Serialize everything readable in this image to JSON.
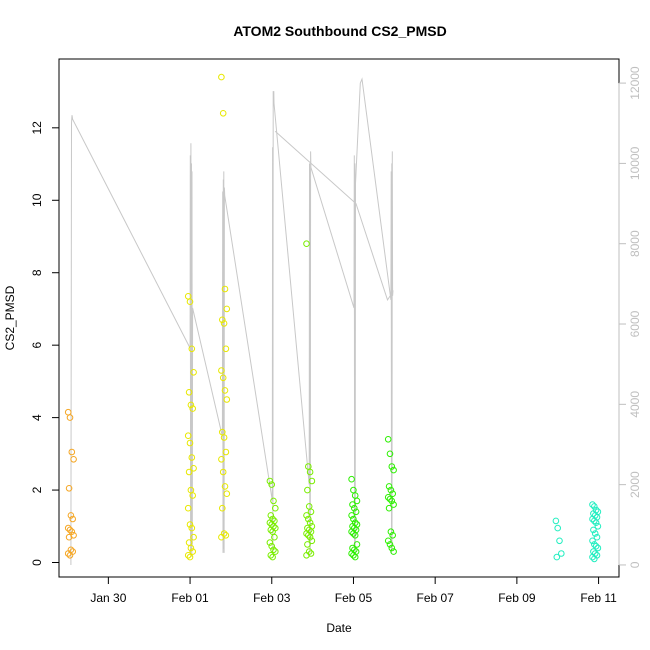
{
  "chart_data": {
    "type": "scatter",
    "title": "ATOM2 Southbound CS2_PMSD",
    "xlabel": "Date",
    "ylabel": "CS2_PMSD",
    "x_ticks": [
      "Jan 30",
      "Feb 01",
      "Feb 03",
      "Feb 05",
      "Feb 07",
      "Feb 09",
      "Feb 11"
    ],
    "y_ticks": [
      "0",
      "2",
      "4",
      "6",
      "8",
      "10",
      "12"
    ],
    "y2_ticks": [
      "0",
      "2000",
      "4000",
      "6000",
      "8000",
      "10000",
      "12000"
    ],
    "xlim": [
      "Jan 28 19:00",
      "Feb 11 12:00"
    ],
    "ylim": [
      -0.4,
      13.9
    ],
    "y2lim": [
      -300,
      12600
    ],
    "grid": false,
    "series": [
      {
        "marker": "circle-open",
        "color": "#f5a623",
        "points": [
          {
            "x": "Jan 29 02:00",
            "y": [
              4.15,
              4.0,
              3.05,
              2.85,
              2.05,
              1.3,
              1.2,
              0.95,
              0.9,
              0.85,
              0.75,
              0.7,
              0.35,
              0.3,
              0.25,
              0.2
            ]
          }
        ]
      },
      {
        "marker": "circle-open",
        "color": "#e8e800",
        "points": [
          {
            "x": "Feb 01 00:30",
            "y": [
              7.35,
              7.2,
              5.9,
              5.25,
              4.7,
              4.35,
              4.25,
              3.5,
              3.3,
              2.9,
              2.6,
              2.5,
              2.0,
              1.85,
              1.5,
              1.05,
              0.95,
              0.7,
              0.55,
              0.4,
              0.3,
              0.2,
              0.15
            ]
          },
          {
            "x": "Feb 01 20:00",
            "y": [
              13.4,
              12.4,
              7.55,
              7.0,
              6.7,
              6.6,
              5.9,
              5.3,
              5.1,
              4.75,
              4.5,
              3.6,
              3.45,
              3.05,
              2.85,
              2.5,
              2.1,
              1.9,
              1.5,
              0.8,
              0.75,
              0.7
            ]
          }
        ]
      },
      {
        "marker": "circle-open",
        "color": "#7aee00",
        "points": [
          {
            "x": "Feb 03 00:30",
            "y": [
              2.25,
              2.15,
              1.7,
              1.5,
              1.3,
              1.2,
              1.15,
              1.1,
              1.05,
              1.0,
              0.95,
              0.9,
              0.85,
              0.7,
              0.55,
              0.45,
              0.35,
              0.3,
              0.2,
              0.15
            ]
          },
          {
            "x": "Feb 03 22:00",
            "y": [
              8.8,
              2.65,
              2.5,
              2.25,
              2.0,
              1.55,
              1.4,
              1.3,
              1.2,
              1.1,
              1.0,
              0.95,
              0.9,
              0.85,
              0.8,
              0.75,
              0.7,
              0.6,
              0.5,
              0.3,
              0.25,
              0.2
            ]
          }
        ]
      },
      {
        "marker": "circle-open",
        "color": "#2cf000",
        "points": [
          {
            "x": "Feb 05 00:30",
            "y": [
              2.3,
              2.0,
              1.85,
              1.7,
              1.6,
              1.5,
              1.4,
              1.3,
              1.2,
              1.1,
              1.05,
              1.0,
              0.95,
              0.9,
              0.85,
              0.8,
              0.75,
              0.5,
              0.4,
              0.35,
              0.3,
              0.25,
              0.2,
              0.15
            ]
          },
          {
            "x": "Feb 05 22:00",
            "y": [
              3.4,
              3.0,
              2.65,
              2.55,
              2.1,
              2.0,
              1.9,
              1.8,
              1.75,
              1.7,
              1.6,
              1.5,
              0.85,
              0.75,
              0.6,
              0.5,
              0.4,
              0.3
            ]
          }
        ]
      },
      {
        "marker": "circle-open",
        "color": "#22eec0",
        "points": [
          {
            "x": "Feb 10 00:30",
            "y": [
              1.15,
              0.95,
              0.6,
              0.25,
              0.15
            ]
          },
          {
            "x": "Feb 10 22:00",
            "y": [
              1.6,
              1.55,
              1.45,
              1.4,
              1.35,
              1.3,
              1.25,
              1.2,
              1.15,
              1.1,
              1.0,
              0.9,
              0.8,
              0.7,
              0.6,
              0.5,
              0.45,
              0.4,
              0.3,
              0.25,
              0.2,
              0.15,
              0.1
            ]
          }
        ]
      }
    ],
    "trace_line": {
      "color": "#c8c8c8",
      "axis": "right",
      "points": [
        [
          "Jan 29 02:00",
          0
        ],
        [
          "Jan 29 02:20",
          11000
        ],
        [
          "Jan 29 02:40",
          11200
        ],
        [
          "Jan 29 03:00",
          11100
        ],
        [
          "Feb 01 00:00",
          5400
        ],
        [
          "Feb 01 00:10",
          10200
        ],
        [
          "Feb 01 00:20",
          300
        ],
        [
          "Feb 01 00:30",
          10500
        ],
        [
          "Feb 01 00:40",
          400
        ],
        [
          "Feb 01 00:50",
          10000
        ],
        [
          "Feb 01 01:00",
          200
        ],
        [
          "Feb 01 01:10",
          9800
        ],
        [
          "Feb 01 01:20",
          500
        ],
        [
          "Feb 01 01:30",
          6400
        ],
        [
          "Feb 01 19:00",
          3200
        ],
        [
          "Feb 01 19:10",
          9300
        ],
        [
          "Feb 01 19:20",
          300
        ],
        [
          "Feb 01 19:30",
          9600
        ],
        [
          "Feb 01 19:40",
          400
        ],
        [
          "Feb 01 19:50",
          9800
        ],
        [
          "Feb 01 20:00",
          300
        ],
        [
          "Feb 01 20:10",
          9400
        ],
        [
          "Feb 01 20:20",
          9200
        ],
        [
          "Feb 03 00:20",
          1600
        ],
        [
          "Feb 03 00:30",
          10400
        ],
        [
          "Feb 03 00:40",
          300
        ],
        [
          "Feb 03 00:50",
          11800
        ],
        [
          "Feb 03 01:00",
          11600
        ],
        [
          "Feb 03 01:10",
          11800
        ],
        [
          "Feb 03 01:20",
          11500
        ],
        [
          "Feb 03 22:00",
          2000
        ],
        [
          "Feb 03 22:10",
          10000
        ],
        [
          "Feb 03 22:20",
          300
        ],
        [
          "Feb 03 22:30",
          9600
        ],
        [
          "Feb 03 22:40",
          400
        ],
        [
          "Feb 03 22:50",
          10300
        ],
        [
          "Feb 03 23:00",
          9900
        ],
        [
          "Feb 05 00:20",
          6400
        ],
        [
          "Feb 05 00:30",
          10200
        ],
        [
          "Feb 05 00:40",
          400
        ],
        [
          "Feb 05 00:50",
          10000
        ],
        [
          "Feb 05 01:00",
          300
        ],
        [
          "Feb 05 01:10",
          9500
        ],
        [
          "Feb 05 04:00",
          12000
        ],
        [
          "Feb 05 05:00",
          12100
        ],
        [
          "Feb 05 22:00",
          6600
        ],
        [
          "Feb 05 22:10",
          9800
        ],
        [
          "Feb 05 22:20",
          300
        ],
        [
          "Feb 05 22:30",
          10000
        ],
        [
          "Feb 05 22:40",
          400
        ],
        [
          "Feb 05 22:50",
          10300
        ],
        [
          "Feb 05 23:00",
          6700
        ],
        [
          "Feb 05 23:10",
          6800
        ],
        [
          "Feb 05 20:00",
          6600
        ],
        [
          "Feb 05 01:30",
          9000
        ],
        [
          "Feb 03 02:00",
          10800
        ]
      ]
    }
  }
}
